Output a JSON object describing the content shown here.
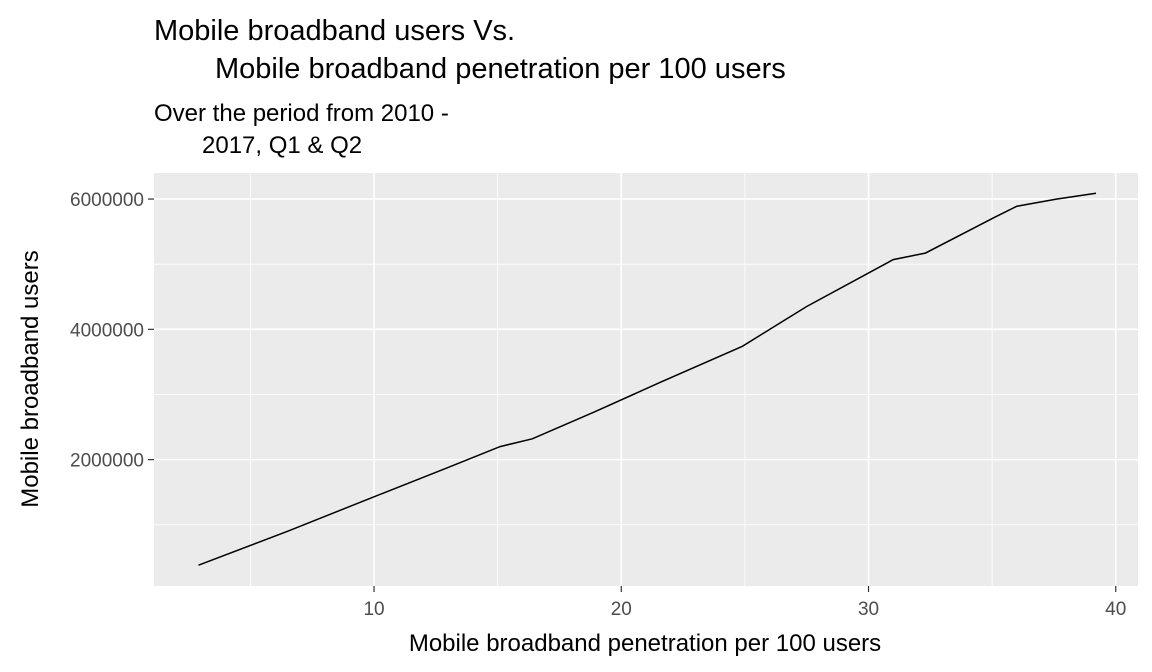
{
  "chart_data": {
    "type": "line",
    "title": [
      "Mobile broadband users Vs.",
      "Mobile broadband penetration per 100 users"
    ],
    "subtitle": [
      "Over the period from 2010 -",
      "2017, Q1 & Q2"
    ],
    "xlabel": "Mobile broadband penetration per 100 users",
    "ylabel": "Mobile broadband users",
    "xlim": [
      1.1,
      40.9
    ],
    "ylim": [
      60000,
      6400000
    ],
    "x_ticks": [
      10,
      20,
      30,
      40
    ],
    "x_tick_labels": [
      "10",
      "20",
      "30",
      "40"
    ],
    "x_minor_ticks": [
      5,
      15,
      25,
      35
    ],
    "y_ticks": [
      2000000,
      4000000,
      6000000
    ],
    "y_tick_labels": [
      "2000000",
      "4000000",
      "6000000"
    ],
    "y_minor_ticks": [
      1000000,
      3000000,
      5000000
    ],
    "grid": true,
    "legend": "none",
    "colors": {
      "panel_background": "#ebebeb",
      "grid_line": "#ffffff",
      "line": "#000000",
      "tick_label": "#4d4d4d",
      "tick_mark": "#333333"
    },
    "series": [
      {
        "x": [
          2.9,
          6.5,
          10.0,
          13.0,
          15.1,
          16.4,
          18.9,
          21.6,
          24.9,
          27.5,
          31.0,
          32.3,
          35.1,
          36.0,
          37.6,
          39.2
        ],
        "y": [
          380000,
          900000,
          1430000,
          1880000,
          2200000,
          2320000,
          2730000,
          3190000,
          3740000,
          4350000,
          5070000,
          5170000,
          5720000,
          5890000,
          6000000,
          6090000
        ]
      }
    ]
  }
}
